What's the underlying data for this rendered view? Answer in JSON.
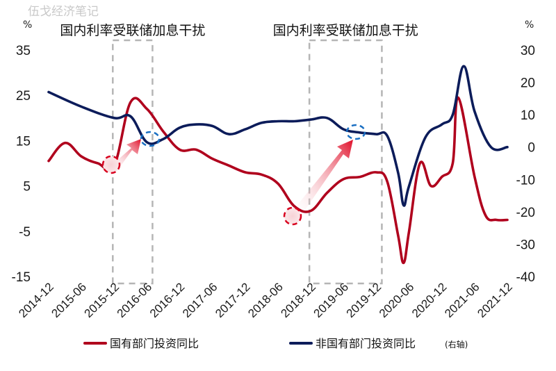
{
  "watermark": "伍戈经济笔记",
  "chart_data": {
    "type": "line",
    "x_categories": [
      "2014-12",
      "2015-06",
      "2015-12",
      "2016-06",
      "2016-12",
      "2017-06",
      "2017-12",
      "2018-06",
      "2018-12",
      "2019-06",
      "2019-12",
      "2020-06",
      "2020-12",
      "2021-06",
      "2021-12"
    ],
    "y_left": {
      "unit": "%",
      "range": [
        -15,
        35
      ],
      "ticks": [
        35,
        25,
        15,
        5,
        -5,
        -15
      ]
    },
    "y_right": {
      "unit": "%",
      "range": [
        -40,
        30
      ],
      "ticks": [
        30,
        20,
        10,
        0,
        -10,
        -20,
        -30,
        -40
      ]
    },
    "annotations": [
      {
        "text": "国内利率受联储加息干扰",
        "from": "2015-12",
        "to": "2016-06"
      },
      {
        "text": "国内利率受联储加息干扰",
        "from": "2018-12",
        "to": "2019-12"
      }
    ],
    "series": [
      {
        "name": "国有部门投资同比",
        "axis": "left",
        "color": "#b0001d",
        "points": [
          [
            "2014-12",
            10.5
          ],
          [
            "2015-03",
            14.5
          ],
          [
            "2015-06",
            11.5
          ],
          [
            "2015-09",
            10.0
          ],
          [
            "2015-12",
            9.5
          ],
          [
            "2016-03",
            23.5
          ],
          [
            "2016-06",
            22.0
          ],
          [
            "2016-09",
            17.0
          ],
          [
            "2016-12",
            13.0
          ],
          [
            "2017-03",
            13.0
          ],
          [
            "2017-06",
            11.0
          ],
          [
            "2017-09",
            9.5
          ],
          [
            "2017-12",
            8.0
          ],
          [
            "2018-03",
            7.5
          ],
          [
            "2018-06",
            5.5
          ],
          [
            "2018-09",
            0.5
          ],
          [
            "2018-12",
            -0.5
          ],
          [
            "2019-03",
            3.5
          ],
          [
            "2019-06",
            6.5
          ],
          [
            "2019-09",
            7.0
          ],
          [
            "2019-12",
            8.0
          ],
          [
            "2020-02",
            6.0
          ],
          [
            "2020-04",
            -6.0
          ],
          [
            "2020-05",
            -12.0
          ],
          [
            "2020-06",
            -5.0
          ],
          [
            "2020-08",
            10.0
          ],
          [
            "2020-10",
            5.0
          ],
          [
            "2020-12",
            7.0
          ],
          [
            "2021-02",
            10.0
          ],
          [
            "2021-03",
            24.5
          ],
          [
            "2021-06",
            7.0
          ],
          [
            "2021-08",
            -1.5
          ],
          [
            "2021-10",
            -2.5
          ],
          [
            "2021-12",
            -2.5
          ]
        ]
      },
      {
        "name": "非国有部门投资同比",
        "name_suffix": "(右轴)",
        "axis": "right",
        "color": "#0c1c5a",
        "points": [
          [
            "2014-12",
            17.0
          ],
          [
            "2015-06",
            12.5
          ],
          [
            "2015-12",
            9.0
          ],
          [
            "2016-03",
            9.5
          ],
          [
            "2016-06",
            1.5
          ],
          [
            "2016-09",
            2.5
          ],
          [
            "2016-12",
            6.0
          ],
          [
            "2017-03",
            7.0
          ],
          [
            "2017-06",
            6.5
          ],
          [
            "2017-09",
            4.0
          ],
          [
            "2017-12",
            5.5
          ],
          [
            "2018-03",
            7.5
          ],
          [
            "2018-06",
            8.0
          ],
          [
            "2018-09",
            8.0
          ],
          [
            "2018-12",
            8.5
          ],
          [
            "2019-03",
            9.0
          ],
          [
            "2019-06",
            5.5
          ],
          [
            "2019-09",
            4.5
          ],
          [
            "2019-12",
            4.0
          ],
          [
            "2020-02",
            3.5
          ],
          [
            "2020-04",
            -8.0
          ],
          [
            "2020-05",
            -18.0
          ],
          [
            "2020-06",
            -12.0
          ],
          [
            "2020-09",
            3.0
          ],
          [
            "2020-12",
            7.0
          ],
          [
            "2021-02",
            10.0
          ],
          [
            "2021-04",
            25.0
          ],
          [
            "2021-06",
            11.0
          ],
          [
            "2021-09",
            0.0
          ],
          [
            "2021-12",
            0.0
          ]
        ]
      }
    ]
  }
}
